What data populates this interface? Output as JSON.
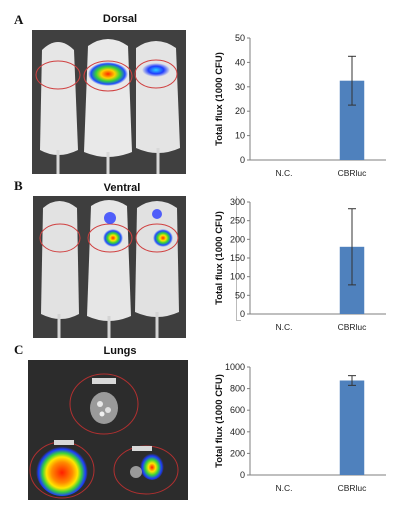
{
  "panels": [
    {
      "letter": "A",
      "title": "Dorsal"
    },
    {
      "letter": "B",
      "title": "Ventral"
    },
    {
      "letter": "C",
      "title": "Lungs"
    }
  ],
  "colors": {
    "bar": "#4f81bd",
    "axis": "#7f7f7f",
    "ellipse": "#d04040"
  },
  "chart_data": [
    {
      "type": "bar",
      "categories": [
        "N.C.",
        "CBRluc"
      ],
      "values": [
        0,
        32.5
      ],
      "errors": [
        0,
        10
      ],
      "ylabel": "Total flux (1000 CFU)",
      "ylim": [
        0,
        50
      ],
      "yticks": [
        "0",
        "10",
        "20",
        "30",
        "40",
        "50"
      ],
      "grid": false
    },
    {
      "type": "bar",
      "categories": [
        "N.C.",
        "CBRluc"
      ],
      "values": [
        0,
        180
      ],
      "errors": [
        0,
        102
      ],
      "ylabel": "Total flux (1000 CFU)",
      "ylim": [
        0,
        300
      ],
      "yticks": [
        "0",
        "50",
        "100",
        "150",
        "200",
        "250",
        "300"
      ],
      "grid": false
    },
    {
      "type": "bar",
      "categories": [
        "N.C.",
        "CBRluc"
      ],
      "values": [
        0,
        875
      ],
      "errors": [
        0,
        45
      ],
      "ylabel": "Total flux (1000 CFU)",
      "ylim": [
        0,
        1000
      ],
      "yticks": [
        "0",
        "200",
        "400",
        "600",
        "800",
        "1000"
      ],
      "grid": false
    }
  ]
}
